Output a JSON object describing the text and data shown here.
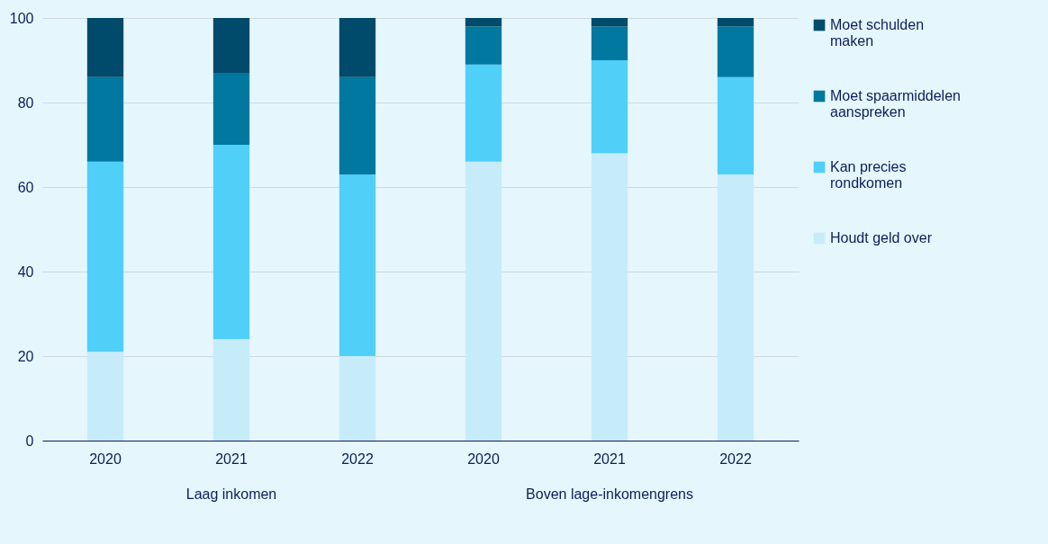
{
  "chart_data": {
    "type": "bar",
    "stacked": true,
    "categories": [
      "2020",
      "2021",
      "2022",
      "2020",
      "2021",
      "2022"
    ],
    "series": [
      {
        "name": "Houdt geld over",
        "color": "#c6ecfa",
        "values": [
          21,
          24,
          20,
          66,
          68,
          63
        ]
      },
      {
        "name": "Kan precies rondkomen",
        "color": "#50cff9",
        "values": [
          45,
          46,
          43,
          23,
          22,
          23
        ]
      },
      {
        "name": "Moet spaarmiddelen aanspreken",
        "color": "#00789f",
        "values": [
          20,
          17,
          23,
          9,
          8,
          12
        ]
      },
      {
        "name": "Moet schulden maken",
        "color": "#004a6b",
        "values": [
          14,
          13,
          14,
          2,
          2,
          2
        ]
      }
    ],
    "annotations": [
      "Laag inkomen",
      "Boven lage-inkomengrens"
    ],
    "ylim": [
      0,
      100
    ],
    "yticks": [
      0,
      20,
      40,
      60,
      80,
      100
    ],
    "grid": "y",
    "legend": "right"
  }
}
